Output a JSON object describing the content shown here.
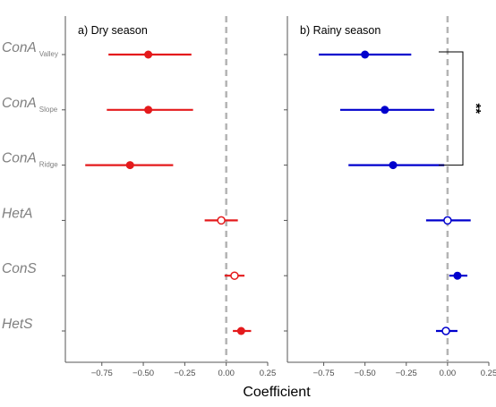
{
  "chart_data": {
    "type": "scatter",
    "subtype": "coefficient-plot",
    "xlabel": "Coefficient",
    "xlim": [
      -0.97,
      0.25
    ],
    "xticks": [
      -0.75,
      -0.5,
      -0.25,
      0.0,
      0.25
    ],
    "xtick_labels": [
      "−0.75",
      "−0.50",
      "−0.25",
      "0.00",
      "0.25"
    ],
    "reference_line": 0,
    "grid": false,
    "categories": [
      {
        "id": "conA_valley",
        "main": "ConA",
        "sub": "Valley"
      },
      {
        "id": "conA_slope",
        "main": "ConA",
        "sub": "Slope"
      },
      {
        "id": "conA_ridge",
        "main": "ConA",
        "sub": "Ridge"
      },
      {
        "id": "hetA",
        "main": "HetA",
        "sub": ""
      },
      {
        "id": "conS",
        "main": "ConS",
        "sub": ""
      },
      {
        "id": "hetS",
        "main": "HetS",
        "sub": ""
      }
    ],
    "panels": [
      {
        "title": "a) Dry season",
        "color": "#e41a1c",
        "points": [
          {
            "category": "conA_valley",
            "estimate": -0.47,
            "lower": -0.71,
            "upper": -0.21,
            "filled": true
          },
          {
            "category": "conA_slope",
            "estimate": -0.47,
            "lower": -0.72,
            "upper": -0.2,
            "filled": true
          },
          {
            "category": "conA_ridge",
            "estimate": -0.58,
            "lower": -0.85,
            "upper": -0.32,
            "filled": true
          },
          {
            "category": "hetA",
            "estimate": -0.03,
            "lower": -0.13,
            "upper": 0.07,
            "filled": false
          },
          {
            "category": "conS",
            "estimate": 0.05,
            "lower": -0.01,
            "upper": 0.11,
            "filled": false
          },
          {
            "category": "hetS",
            "estimate": 0.09,
            "lower": 0.04,
            "upper": 0.15,
            "filled": true
          }
        ],
        "annotation": null
      },
      {
        "title": "b) Rainy season",
        "color": "#0000cd",
        "points": [
          {
            "category": "conA_valley",
            "estimate": -0.5,
            "lower": -0.78,
            "upper": -0.22,
            "filled": true
          },
          {
            "category": "conA_slope",
            "estimate": -0.38,
            "lower": -0.65,
            "upper": -0.08,
            "filled": true
          },
          {
            "category": "conA_ridge",
            "estimate": -0.33,
            "lower": -0.6,
            "upper": -0.02,
            "filled": true
          },
          {
            "category": "hetA",
            "estimate": 0.0,
            "lower": -0.13,
            "upper": 0.14,
            "filled": false
          },
          {
            "category": "conS",
            "estimate": 0.06,
            "lower": 0.01,
            "upper": 0.12,
            "filled": true
          },
          {
            "category": "hetS",
            "estimate": -0.01,
            "lower": -0.07,
            "upper": 0.06,
            "filled": false
          }
        ],
        "annotation": {
          "label": "**",
          "from_category": "conA_valley",
          "to_category": "conA_ridge"
        }
      }
    ]
  }
}
